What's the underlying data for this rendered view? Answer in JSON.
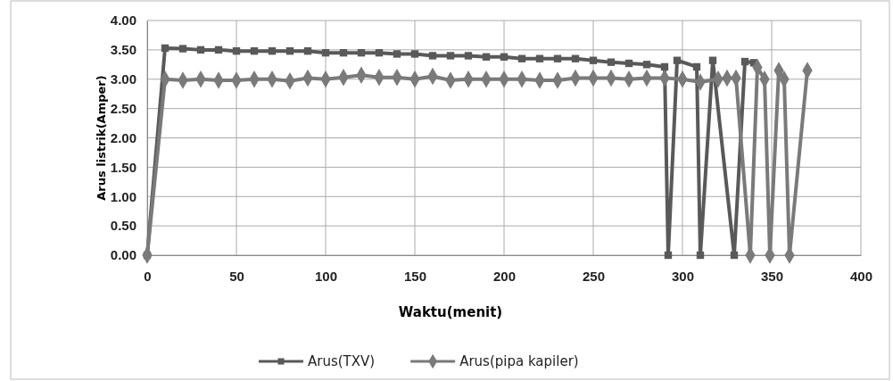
{
  "chart_data": {
    "type": "line",
    "xlabel": "Waktu(menit)",
    "ylabel": "Arus listrik(Amper)",
    "xlim": [
      0,
      400
    ],
    "xticks": [
      0,
      50,
      100,
      150,
      200,
      250,
      300,
      350,
      400
    ],
    "ylim": [
      0,
      4
    ],
    "yticks": [
      {
        "value": 0,
        "label": "0.00"
      },
      {
        "value": 0.5,
        "label": "0.50"
      },
      {
        "value": 1,
        "label": "1.00"
      },
      {
        "value": 1.5,
        "label": "1.50"
      },
      {
        "value": 2,
        "label": "2.00"
      },
      {
        "value": 2.5,
        "label": "2.50"
      },
      {
        "value": 3,
        "label": "3.00"
      },
      {
        "value": 3.5,
        "label": "3.50"
      },
      {
        "value": 4,
        "label": "4.00"
      }
    ],
    "grid": true,
    "legend": "bottom",
    "line_style": "solid",
    "series": [
      {
        "name": "Arus(TXV)",
        "color": "#595959",
        "marker": "square",
        "x": [
          0,
          10,
          20,
          30,
          40,
          50,
          60,
          70,
          80,
          90,
          100,
          110,
          120,
          130,
          140,
          150,
          160,
          170,
          180,
          190,
          200,
          210,
          220,
          230,
          240,
          250,
          260,
          270,
          280,
          290,
          292,
          297,
          308,
          310,
          317,
          329,
          335,
          340
        ],
        "values": [
          0,
          3.53,
          3.52,
          3.5,
          3.5,
          3.48,
          3.48,
          3.48,
          3.48,
          3.48,
          3.45,
          3.45,
          3.45,
          3.45,
          3.43,
          3.43,
          3.4,
          3.4,
          3.4,
          3.38,
          3.38,
          3.35,
          3.35,
          3.35,
          3.35,
          3.32,
          3.29,
          3.27,
          3.25,
          3.21,
          0,
          3.32,
          3.21,
          0,
          3.32,
          0,
          3.3,
          3.28
        ]
      },
      {
        "name": "Arus(pipa kapiler)",
        "color": "#7a7a7a",
        "marker": "diamond",
        "x": [
          0,
          10,
          20,
          30,
          40,
          50,
          60,
          70,
          80,
          90,
          100,
          110,
          120,
          130,
          140,
          150,
          160,
          170,
          180,
          190,
          200,
          210,
          220,
          230,
          240,
          250,
          260,
          270,
          280,
          290,
          300,
          310,
          320,
          325,
          330,
          338,
          342,
          346,
          349,
          354,
          357,
          360,
          370
        ],
        "values": [
          0,
          3.0,
          2.98,
          3.0,
          2.98,
          2.98,
          3.0,
          3.0,
          2.97,
          3.02,
          3.0,
          3.03,
          3.07,
          3.03,
          3.03,
          3.0,
          3.05,
          2.98,
          3.0,
          3.0,
          3.0,
          3.0,
          2.98,
          2.98,
          3.02,
          3.02,
          3.02,
          3.0,
          3.02,
          3.02,
          3.0,
          2.95,
          3.0,
          3.02,
          3.02,
          0,
          3.2,
          3.0,
          0,
          3.15,
          3.0,
          0,
          3.15
        ]
      }
    ]
  }
}
